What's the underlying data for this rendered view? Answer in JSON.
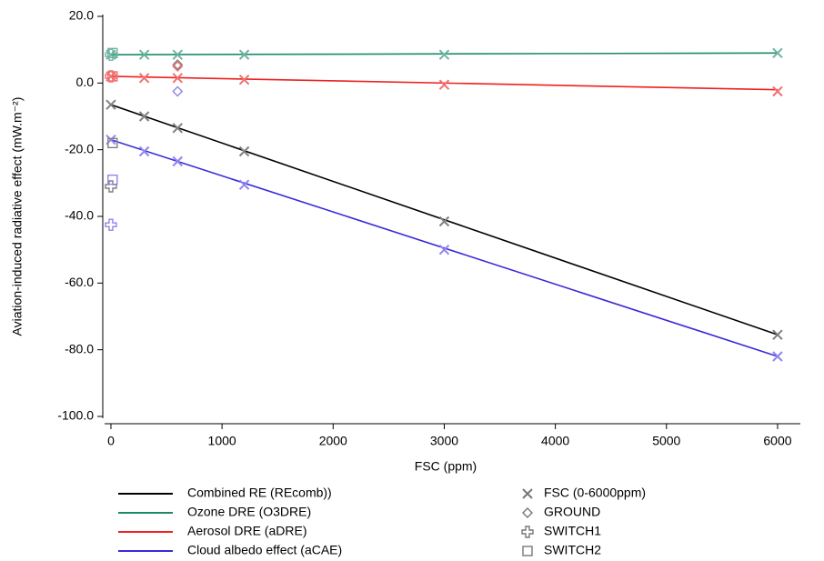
{
  "chart_data": {
    "type": "line",
    "xlabel": "FSC (ppm)",
    "ylabel": "Aviation-induced radiative effect (mW.m⁻²)",
    "xlim": [
      -57,
      6205
    ],
    "ylim": [
      -100,
      20
    ],
    "xticks": [
      0,
      1000,
      2000,
      3000,
      4000,
      5000,
      6000
    ],
    "yticks": [
      {
        "value": 20,
        "label": "20.0"
      },
      {
        "value": 0,
        "label": "0.0"
      },
      {
        "value": -20,
        "label": "-20.0"
      },
      {
        "value": -40,
        "label": "-40.0"
      },
      {
        "value": -60,
        "label": "-60.0"
      },
      {
        "value": -80,
        "label": "-80.0"
      },
      {
        "value": -100,
        "label": "-100.0"
      }
    ],
    "series": [
      {
        "name": "Combined RE (REcomb))",
        "color": "#000000",
        "x": [
          0,
          6000
        ],
        "values": [
          -6.5,
          -75.5
        ]
      },
      {
        "name": "Ozone DRE (O3DRE)",
        "color": "#1a8a6a",
        "x": [
          0,
          6000
        ],
        "values": [
          8.5,
          9
        ]
      },
      {
        "name": "Aerosol DRE (aDRE)",
        "color": "#ee2020",
        "x": [
          0,
          6000
        ],
        "values": [
          2,
          -2
        ]
      },
      {
        "name": "Cloud albedo effect (aCAE)",
        "color": "#3a2ad8",
        "x": [
          0,
          6000
        ],
        "values": [
          -17,
          -82
        ]
      }
    ],
    "marker_series": [
      {
        "name": "FSC (0-6000ppm)",
        "marker": "x",
        "groups": [
          {
            "color": "#808080",
            "x": [
              0,
              300,
              600,
              1200,
              3000,
              6000
            ],
            "values": [
              -6.5,
              -10,
              -13.5,
              -20.5,
              -41.5,
              -75.5
            ]
          },
          {
            "color": "#6fb3a0",
            "x": [
              0,
              300,
              600,
              1200,
              3000,
              6000
            ],
            "values": [
              8.5,
              8.5,
              8.5,
              8.5,
              8.5,
              9
            ]
          },
          {
            "color": "#f07070",
            "x": [
              0,
              300,
              600,
              1200,
              3000,
              6000
            ],
            "values": [
              2,
              1.5,
              1.5,
              1,
              -0.5,
              -2.5
            ]
          },
          {
            "color": "#8f85ee",
            "x": [
              0,
              300,
              600,
              1200,
              3000,
              6000
            ],
            "values": [
              -17,
              -20.5,
              -23.5,
              -30.5,
              -50,
              -82
            ]
          }
        ]
      },
      {
        "name": "GROUND",
        "marker": "diamond",
        "groups": [
          {
            "color": "#808080",
            "x": [
              600
            ],
            "values": [
              5.5
            ]
          },
          {
            "color": "#f07070",
            "x": [
              600
            ],
            "values": [
              5
            ]
          },
          {
            "color": "#8f85ee",
            "x": [
              600
            ],
            "values": [
              -2.5
            ]
          }
        ]
      },
      {
        "name": "SWITCH1",
        "marker": "plus",
        "groups": [
          {
            "color": "#808080",
            "x": [
              0
            ],
            "values": [
              -31
            ]
          },
          {
            "color": "#6fb3a0",
            "x": [
              0
            ],
            "values": [
              8.5
            ]
          },
          {
            "color": "#f07070",
            "x": [
              0
            ],
            "values": [
              2
            ]
          },
          {
            "color": "#8f85ee",
            "x": [
              0
            ],
            "values": [
              -42.5
            ]
          }
        ]
      },
      {
        "name": "SWITCH2",
        "marker": "square",
        "groups": [
          {
            "color": "#808080",
            "x": [
              15
            ],
            "values": [
              -18
            ]
          },
          {
            "color": "#6fb3a0",
            "x": [
              15
            ],
            "values": [
              9
            ]
          },
          {
            "color": "#f07070",
            "x": [
              15
            ],
            "values": [
              2
            ]
          },
          {
            "color": "#8f85ee",
            "x": [
              15
            ],
            "values": [
              -29
            ]
          }
        ]
      }
    ]
  }
}
